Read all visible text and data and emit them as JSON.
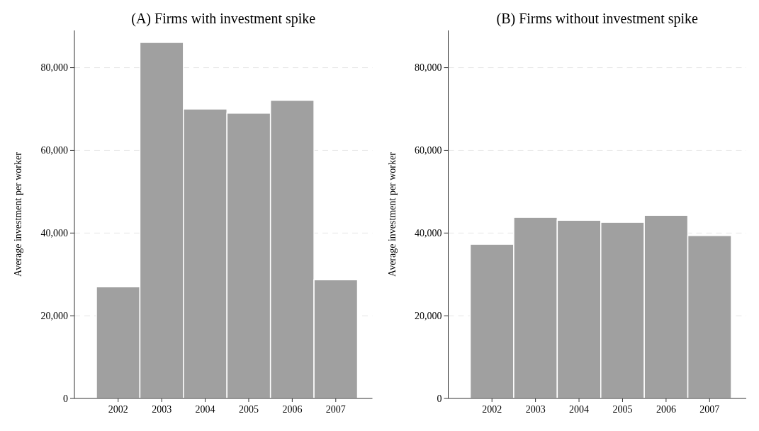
{
  "chart_data": [
    {
      "type": "bar",
      "title": "(A) Firms with investment spike",
      "ylabel": "Average investment per worker",
      "categories": [
        "2002",
        "2003",
        "2004",
        "2005",
        "2006",
        "2007"
      ],
      "values": [
        27000,
        86100,
        70000,
        69000,
        72100,
        28700
      ],
      "color": "#a0a0a0",
      "ylim": [
        0,
        89000
      ],
      "yticks": [
        0,
        {
          "value": 20000,
          "label": "20,000"
        },
        {
          "value": 40000,
          "label": "40,000"
        },
        {
          "value": 60000,
          "label": "60,000"
        },
        {
          "value": 80000,
          "label": "80,000"
        }
      ],
      "grid": "y"
    },
    {
      "type": "bar",
      "title": "(B) Firms without investment spike",
      "ylabel": "Average investment per worker",
      "categories": [
        "2002",
        "2003",
        "2004",
        "2005",
        "2006",
        "2007"
      ],
      "values": [
        37300,
        43800,
        43100,
        42600,
        44300,
        39400
      ],
      "color": "#a0a0a0",
      "ylim": [
        0,
        89000
      ],
      "yticks": [
        0,
        {
          "value": 20000,
          "label": "20,000"
        },
        {
          "value": 40000,
          "label": "40,000"
        },
        {
          "value": 60000,
          "label": "60,000"
        },
        {
          "value": 80000,
          "label": "80,000"
        }
      ],
      "grid": "y"
    }
  ]
}
